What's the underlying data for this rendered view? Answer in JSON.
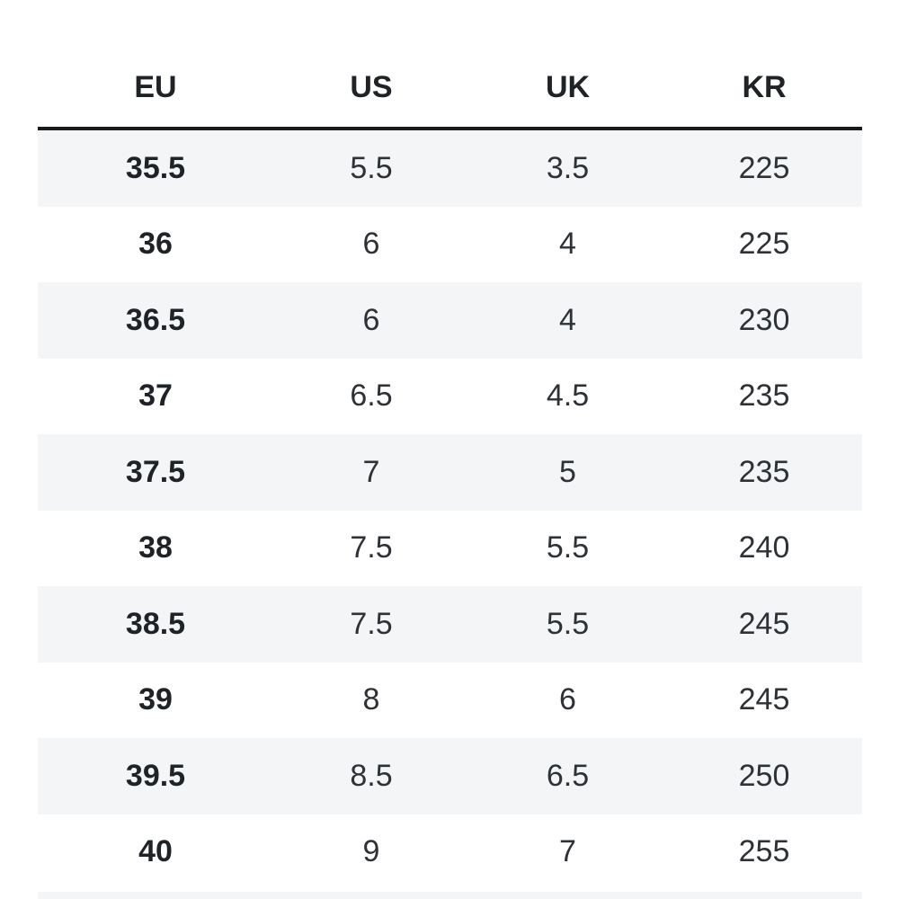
{
  "table": {
    "headers": [
      "EU",
      "US",
      "UK",
      "KR"
    ],
    "rows": [
      [
        "35.5",
        "5.5",
        "3.5",
        "225"
      ],
      [
        "36",
        "6",
        "4",
        "225"
      ],
      [
        "36.5",
        "6",
        "4",
        "230"
      ],
      [
        "37",
        "6.5",
        "4.5",
        "235"
      ],
      [
        "37.5",
        "7",
        "5",
        "235"
      ],
      [
        "38",
        "7.5",
        "5.5",
        "240"
      ],
      [
        "38.5",
        "7.5",
        "5.5",
        "245"
      ],
      [
        "39",
        "8",
        "6",
        "245"
      ],
      [
        "39.5",
        "8.5",
        "6.5",
        "250"
      ],
      [
        "40",
        "9",
        "7",
        "255"
      ]
    ]
  },
  "colors": {
    "header_rule": "#1a1a1a",
    "striped_row": "#f4f5f7",
    "text": "#2e3236"
  }
}
